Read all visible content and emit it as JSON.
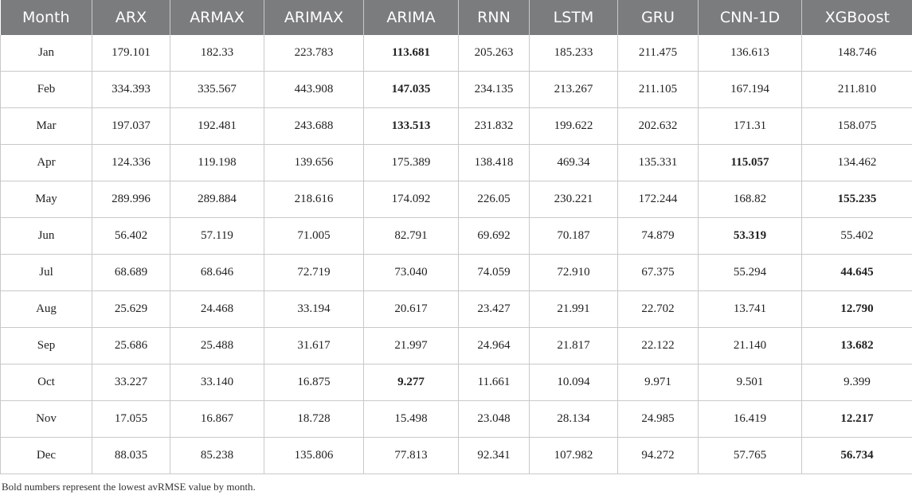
{
  "table": {
    "columns": [
      "Month",
      "ARX",
      "ARMAX",
      "ARIMAX",
      "ARIMA",
      "RNN",
      "LSTM",
      "GRU",
      "CNN-1D",
      "XGBoost"
    ],
    "rows": [
      {
        "month": "Jan",
        "values": [
          "179.101",
          "182.33",
          "223.783",
          "113.681",
          "205.263",
          "185.233",
          "211.475",
          "136.613",
          "148.746"
        ],
        "best": 3
      },
      {
        "month": "Feb",
        "values": [
          "334.393",
          "335.567",
          "443.908",
          "147.035",
          "234.135",
          "213.267",
          "211.105",
          "167.194",
          "211.810"
        ],
        "best": 3
      },
      {
        "month": "Mar",
        "values": [
          "197.037",
          "192.481",
          "243.688",
          "133.513",
          "231.832",
          "199.622",
          "202.632",
          "171.31",
          "158.075"
        ],
        "best": 3
      },
      {
        "month": "Apr",
        "values": [
          "124.336",
          "119.198",
          "139.656",
          "175.389",
          "138.418",
          "469.34",
          "135.331",
          "115.057",
          "134.462"
        ],
        "best": 7
      },
      {
        "month": "May",
        "values": [
          "289.996",
          "289.884",
          "218.616",
          "174.092",
          "226.05",
          "230.221",
          "172.244",
          "168.82",
          "155.235"
        ],
        "best": 8
      },
      {
        "month": "Jun",
        "values": [
          "56.402",
          "57.119",
          "71.005",
          "82.791",
          "69.692",
          "70.187",
          "74.879",
          "53.319",
          "55.402"
        ],
        "best": 7
      },
      {
        "month": "Jul",
        "values": [
          "68.689",
          "68.646",
          "72.719",
          "73.040",
          "74.059",
          "72.910",
          "67.375",
          "55.294",
          "44.645"
        ],
        "best": 8
      },
      {
        "month": "Aug",
        "values": [
          "25.629",
          "24.468",
          "33.194",
          "20.617",
          "23.427",
          "21.991",
          "22.702",
          "13.741",
          "12.790"
        ],
        "best": 8
      },
      {
        "month": "Sep",
        "values": [
          "25.686",
          "25.488",
          "31.617",
          "21.997",
          "24.964",
          "21.817",
          "22.122",
          "21.140",
          "13.682"
        ],
        "best": 8
      },
      {
        "month": "Oct",
        "values": [
          "33.227",
          "33.140",
          "16.875",
          "9.277",
          "11.661",
          "10.094",
          "9.971",
          "9.501",
          "9.399"
        ],
        "best": 3
      },
      {
        "month": "Nov",
        "values": [
          "17.055",
          "16.867",
          "18.728",
          "15.498",
          "23.048",
          "28.134",
          "24.985",
          "16.419",
          "12.217"
        ],
        "best": 8
      },
      {
        "month": "Dec",
        "values": [
          "88.035",
          "85.238",
          "135.806",
          "77.813",
          "92.341",
          "107.982",
          "94.272",
          "57.765",
          "56.734"
        ],
        "best": 8
      }
    ]
  },
  "footnote": "Bold numbers represent the lowest avRMSE value by month.",
  "colors": {
    "header_bg": "#7b7c7e",
    "header_text": "#ffffff",
    "grid": "#c9c9c9"
  }
}
